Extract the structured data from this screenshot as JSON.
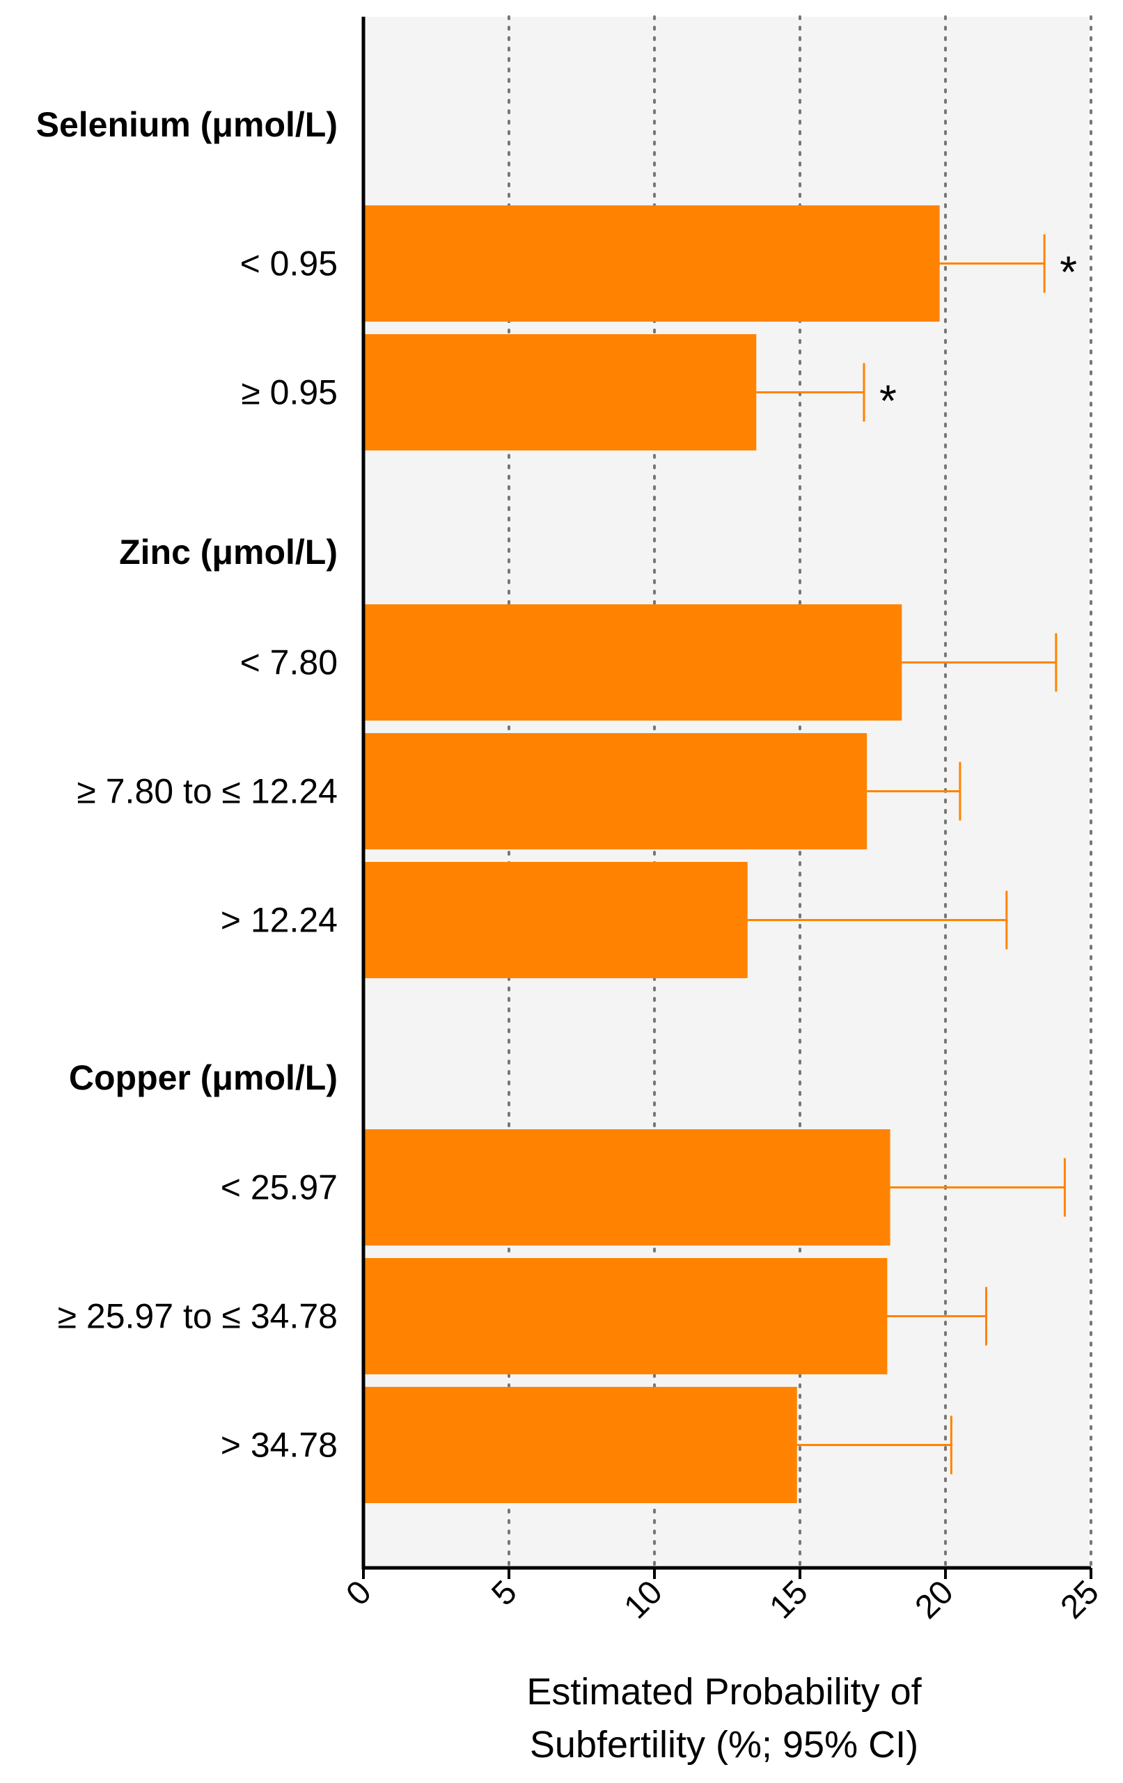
{
  "chart_data": {
    "type": "bar",
    "orientation": "horizontal",
    "xlabel_lines": [
      "Estimated Probability of",
      "Subfertility (%; 95% CI)"
    ],
    "xlim": [
      0,
      25
    ],
    "xticks": [
      "0",
      "5",
      "10",
      "15",
      "20",
      "25"
    ],
    "gridlines": "vertical dotted at each tick",
    "bar_color": "#FF8300",
    "errorbar_color": "#FF8300",
    "plot_background": "#F4F4F4",
    "groups": [
      {
        "label": "Selenium (μmol/L)",
        "bars": [
          {
            "category": "< 0.95",
            "value": 19.8,
            "ci_upper": 23.4,
            "annotation": "*"
          },
          {
            "category": "≥ 0.95",
            "value": 13.5,
            "ci_upper": 17.2,
            "annotation": "*"
          }
        ]
      },
      {
        "label": "Zinc (μmol/L)",
        "bars": [
          {
            "category": "< 7.80",
            "value": 18.5,
            "ci_upper": 23.8,
            "annotation": ""
          },
          {
            "category": "≥ 7.80 to ≤ 12.24",
            "value": 17.3,
            "ci_upper": 20.5,
            "annotation": ""
          },
          {
            "category": "> 12.24",
            "value": 13.2,
            "ci_upper": 22.1,
            "annotation": ""
          }
        ]
      },
      {
        "label": "Copper (μmol/L)",
        "bars": [
          {
            "category": "< 25.97",
            "value": 18.1,
            "ci_upper": 24.1,
            "annotation": ""
          },
          {
            "category": "≥ 25.97 to ≤ 34.78",
            "value": 18.0,
            "ci_upper": 21.4,
            "annotation": ""
          },
          {
            "category": "> 34.78",
            "value": 14.9,
            "ci_upper": 20.2,
            "annotation": ""
          }
        ]
      }
    ]
  }
}
